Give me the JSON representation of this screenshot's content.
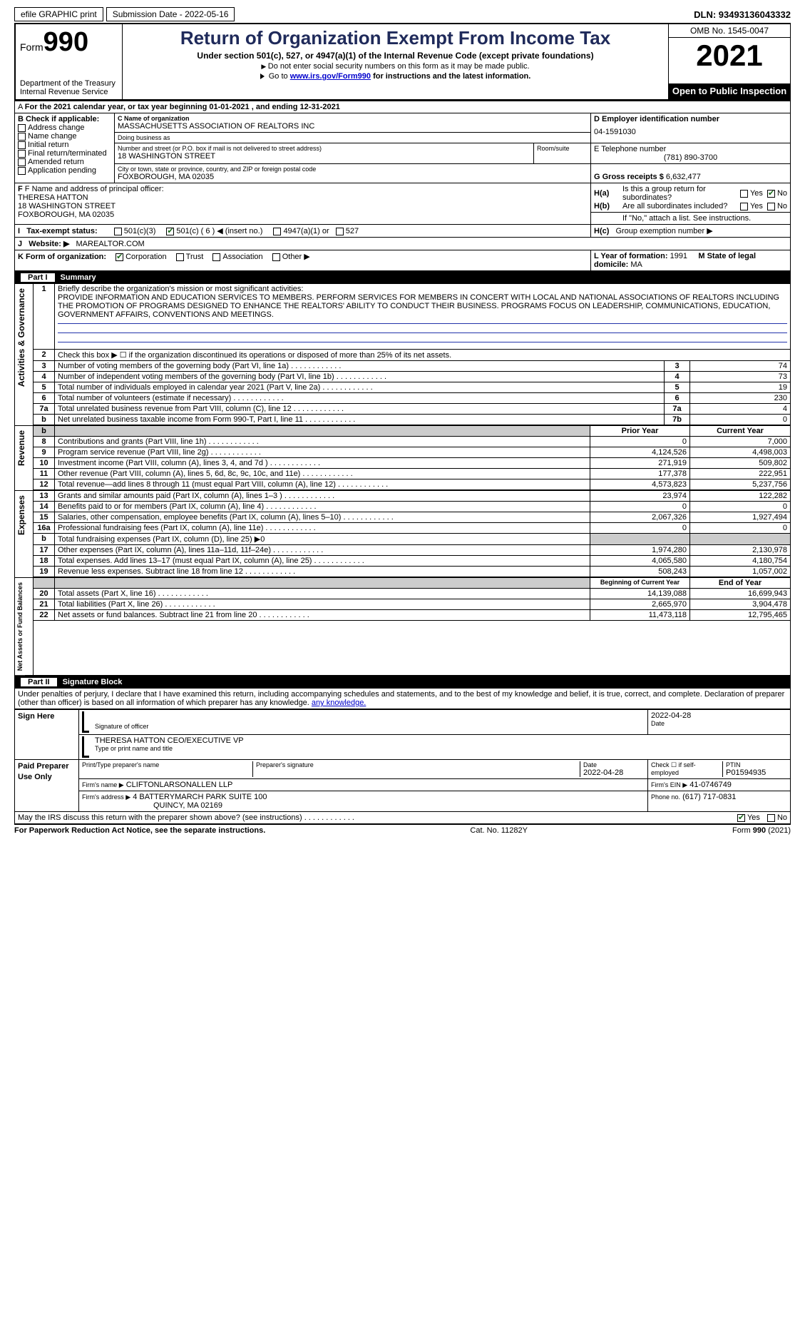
{
  "topbar": {
    "efile": "efile GRAPHIC print",
    "submission": "Submission Date - 2022-05-16",
    "dln": "DLN: 93493136043332"
  },
  "header": {
    "form_label": "Form",
    "form_no": "990",
    "dept": "Department of the Treasury\nInternal Revenue Service",
    "title": "Return of Organization Exempt From Income Tax",
    "subtitle": "Under section 501(c), 527, or 4947(a)(1) of the Internal Revenue Code (except private foundations)",
    "line1": "Do not enter social security numbers on this form as it may be made public.",
    "line2_pre": "Go to ",
    "line2_link": "www.irs.gov/Form990",
    "line2_post": " for instructions and the latest information.",
    "omb": "OMB No. 1545-0047",
    "year": "2021",
    "open": "Open to Public Inspection"
  },
  "A": {
    "text": "For the 2021 calendar year, or tax year beginning 01-01-2021   , and ending 12-31-2021"
  },
  "B": {
    "label": "B Check if applicable:",
    "items": [
      "Address change",
      "Name change",
      "Initial return",
      "Final return/terminated",
      "Amended return",
      "Application pending"
    ]
  },
  "C": {
    "name_lbl": "C Name of organization",
    "name": "MASSACHUSETTS ASSOCIATION OF REALTORS INC",
    "dba_lbl": "Doing business as",
    "dba": "",
    "street_lbl": "Number and street (or P.O. box if mail is not delivered to street address)",
    "street": "18 WASHINGTON STREET",
    "room_lbl": "Room/suite",
    "city_lbl": "City or town, state or province, country, and ZIP or foreign postal code",
    "city": "FOXBOROUGH, MA  02035"
  },
  "D": {
    "lbl": "D Employer identification number",
    "val": "04-1591030"
  },
  "E": {
    "lbl": "E Telephone number",
    "val": "(781) 890-3700"
  },
  "G": {
    "lbl": "G Gross receipts $",
    "val": "6,632,477"
  },
  "F": {
    "lbl": "F  Name and address of principal officer:",
    "name": "THERESA HATTON",
    "street": "18 WASHINGTON STREET",
    "city": "FOXBOROUGH, MA  02035"
  },
  "H": {
    "a": "Is this a group return for subordinates?",
    "b": "Are all subordinates included?",
    "b_note": "If \"No,\" attach a list. See instructions.",
    "c": "Group exemption number ▶"
  },
  "I": {
    "lbl": "Tax-exempt status:",
    "insert": "( 6 ) ◀ (insert no.)"
  },
  "J": {
    "lbl": "Website: ▶",
    "val": "MAREALTOR.COM"
  },
  "K": {
    "lbl": "K Form of organization:"
  },
  "L": {
    "lbl": "L Year of formation:",
    "val": "1991"
  },
  "M": {
    "lbl": "M State of legal domicile:",
    "val": "MA"
  },
  "part1": {
    "num": "Part I",
    "title": "Summary"
  },
  "summary": {
    "line1_lbl": "Briefly describe the organization's mission or most significant activities:",
    "mission": "PROVIDE INFORMATION AND EDUCATION SERVICES TO MEMBERS. PERFORM SERVICES FOR MEMBERS IN CONCERT WITH LOCAL AND NATIONAL ASSOCIATIONS OF REALTORS INCLUDING THE PROMOTION OF PROGRAMS DESIGNED TO ENHANCE THE REALTORS' ABILITY TO CONDUCT THEIR BUSINESS. PROGRAMS FOCUS ON LEADERSHIP, COMMUNICATIONS, EDUCATION, GOVERNMENT AFFAIRS, CONVENTIONS AND MEETINGS.",
    "line2": "Check this box ▶ ☐  if the organization discontinued its operations or disposed of more than 25% of its net assets.",
    "rows_a": [
      {
        "n": "3",
        "d": "Number of voting members of the governing body (Part VI, line 1a)",
        "k": "3",
        "v": "74"
      },
      {
        "n": "4",
        "d": "Number of independent voting members of the governing body (Part VI, line 1b)",
        "k": "4",
        "v": "73"
      },
      {
        "n": "5",
        "d": "Total number of individuals employed in calendar year 2021 (Part V, line 2a)",
        "k": "5",
        "v": "19"
      },
      {
        "n": "6",
        "d": "Total number of volunteers (estimate if necessary)",
        "k": "6",
        "v": "230"
      },
      {
        "n": "7a",
        "d": "Total unrelated business revenue from Part VIII, column (C), line 12",
        "k": "7a",
        "v": "4"
      },
      {
        "n": "b",
        "d": "Net unrelated business taxable income from Form 990-T, Part I, line 11",
        "k": "7b",
        "v": "0"
      }
    ],
    "hdr_prior": "Prior Year",
    "hdr_curr": "Current Year",
    "revenue": [
      {
        "n": "8",
        "d": "Contributions and grants (Part VIII, line 1h)",
        "p": "0",
        "c": "7,000"
      },
      {
        "n": "9",
        "d": "Program service revenue (Part VIII, line 2g)",
        "p": "4,124,526",
        "c": "4,498,003"
      },
      {
        "n": "10",
        "d": "Investment income (Part VIII, column (A), lines 3, 4, and 7d )",
        "p": "271,919",
        "c": "509,802"
      },
      {
        "n": "11",
        "d": "Other revenue (Part VIII, column (A), lines 5, 6d, 8c, 9c, 10c, and 11e)",
        "p": "177,378",
        "c": "222,951"
      },
      {
        "n": "12",
        "d": "Total revenue—add lines 8 through 11 (must equal Part VIII, column (A), line 12)",
        "p": "4,573,823",
        "c": "5,237,756"
      }
    ],
    "expenses": [
      {
        "n": "13",
        "d": "Grants and similar amounts paid (Part IX, column (A), lines 1–3 )",
        "p": "23,974",
        "c": "122,282"
      },
      {
        "n": "14",
        "d": "Benefits paid to or for members (Part IX, column (A), line 4)",
        "p": "0",
        "c": "0"
      },
      {
        "n": "15",
        "d": "Salaries, other compensation, employee benefits (Part IX, column (A), lines 5–10)",
        "p": "2,067,326",
        "c": "1,927,494"
      },
      {
        "n": "16a",
        "d": "Professional fundraising fees (Part IX, column (A), line 11e)",
        "p": "0",
        "c": "0"
      },
      {
        "n": "b",
        "d": "Total fundraising expenses (Part IX, column (D), line 25) ▶0",
        "p": "",
        "c": "",
        "shade": true
      },
      {
        "n": "17",
        "d": "Other expenses (Part IX, column (A), lines 11a–11d, 11f–24e)",
        "p": "1,974,280",
        "c": "2,130,978"
      },
      {
        "n": "18",
        "d": "Total expenses. Add lines 13–17 (must equal Part IX, column (A), line 25)",
        "p": "4,065,580",
        "c": "4,180,754"
      },
      {
        "n": "19",
        "d": "Revenue less expenses. Subtract line 18 from line 12",
        "p": "508,243",
        "c": "1,057,002"
      }
    ],
    "hdr_beg": "Beginning of Current Year",
    "hdr_end": "End of Year",
    "netassets": [
      {
        "n": "20",
        "d": "Total assets (Part X, line 16)",
        "p": "14,139,088",
        "c": "16,699,943"
      },
      {
        "n": "21",
        "d": "Total liabilities (Part X, line 26)",
        "p": "2,665,970",
        "c": "3,904,478"
      },
      {
        "n": "22",
        "d": "Net assets or fund balances. Subtract line 21 from line 20",
        "p": "11,473,118",
        "c": "12,795,465"
      }
    ]
  },
  "part2": {
    "num": "Part II",
    "title": "Signature Block"
  },
  "penalties": "Under penalties of perjury, I declare that I have examined this return, including accompanying schedules and statements, and to the best of my knowledge and belief, it is true, correct, and complete. Declaration of preparer (other than officer) is based on all information of which preparer has any knowledge.",
  "sign": {
    "side": "Sign Here",
    "sig_lbl": "Signature of officer",
    "date_lbl": "Date",
    "date": "2022-04-28",
    "name": "THERESA HATTON CEO/EXECUTIVE VP",
    "name_lbl": "Type or print name and title"
  },
  "preparer": {
    "side": "Paid Preparer Use Only",
    "h1": "Print/Type preparer's name",
    "h2": "Preparer's signature",
    "h3": "Date",
    "date": "2022-04-28",
    "h4": "Check ☐ if self-employed",
    "h5": "PTIN",
    "ptin": "P01594935",
    "firm_lbl": "Firm's name    ▶",
    "firm": "CLIFTONLARSONALLEN LLP",
    "ein_lbl": "Firm's EIN ▶",
    "ein": "41-0746749",
    "addr_lbl": "Firm's address ▶",
    "addr1": "4 BATTERYMARCH PARK SUITE 100",
    "addr2": "QUINCY, MA  02169",
    "phone_lbl": "Phone no.",
    "phone": "(617) 717-0831"
  },
  "discuss": "May the IRS discuss this return with the preparer shown above? (see instructions)",
  "footer": {
    "left": "For Paperwork Reduction Act Notice, see the separate instructions.",
    "mid": "Cat. No. 11282Y",
    "right": "Form 990 (2021)"
  },
  "labels": {
    "vert_ag": "Activities & Governance",
    "vert_rev": "Revenue",
    "vert_exp": "Expenses",
    "vert_net": "Net Assets or Fund Balances",
    "yes": "Yes",
    "no": "No",
    "501c3": "501(c)(3)",
    "501c": "501(c)",
    "4947": "4947(a)(1) or",
    "527": "527",
    "corp": "Corporation",
    "trust": "Trust",
    "assoc": "Association",
    "other": "Other ▶",
    "ha": "H(a)",
    "hb": "H(b)",
    "hc": "H(c)"
  }
}
